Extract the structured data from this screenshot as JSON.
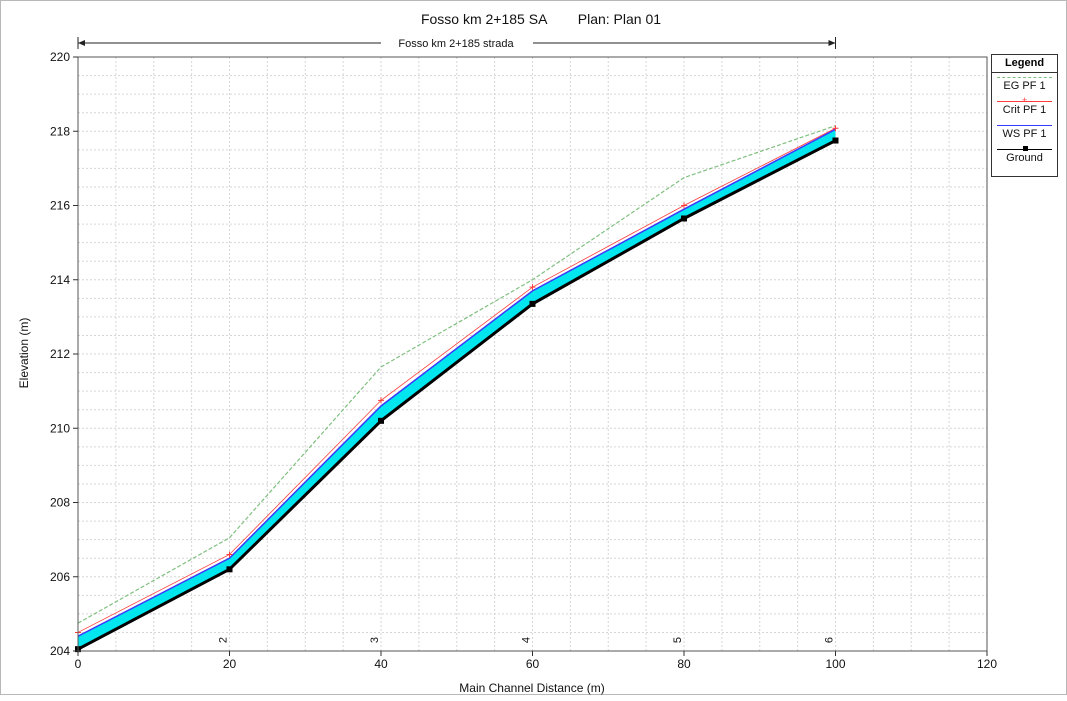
{
  "chart_data": {
    "type": "line",
    "title": "Fosso km 2+185 SA        Plan: Plan 01",
    "reach_label": "Fosso km 2+185 strada",
    "xlabel": "Main Channel Distance (m)",
    "ylabel": "Elevation (m)",
    "xlim": [
      0,
      120
    ],
    "ylim": [
      204,
      220
    ],
    "x_ticks": [
      0,
      20,
      40,
      60,
      80,
      100,
      120
    ],
    "y_ticks": [
      204,
      206,
      208,
      210,
      212,
      214,
      216,
      218,
      220
    ],
    "grid": true,
    "legend_position": "right",
    "reach_extent": [
      0,
      100
    ],
    "stations": [
      {
        "x": 20,
        "label": "2"
      },
      {
        "x": 40,
        "label": "3"
      },
      {
        "x": 60,
        "label": "4"
      },
      {
        "x": 80,
        "label": "5"
      },
      {
        "x": 100,
        "label": "6"
      }
    ],
    "x": [
      0,
      20,
      40,
      60,
      80,
      100
    ],
    "series": [
      {
        "name": "EG  PF 1",
        "key": "eg",
        "color": "#7fbf7f",
        "values": [
          204.75,
          207.05,
          211.65,
          214.0,
          216.75,
          218.15
        ]
      },
      {
        "name": "Crit  PF 1",
        "key": "crit",
        "color": "#ff3b3b",
        "values": [
          204.5,
          206.6,
          210.75,
          213.8,
          216.0,
          218.08
        ]
      },
      {
        "name": "WS  PF 1",
        "key": "ws",
        "color": "#3a3aff",
        "values": [
          204.4,
          206.5,
          210.6,
          213.7,
          215.9,
          218.05
        ]
      },
      {
        "name": "Ground",
        "key": "ground",
        "color": "#000000",
        "values": [
          204.05,
          206.2,
          210.2,
          213.35,
          215.65,
          217.75
        ]
      }
    ],
    "water_fill_color": "#00e5ee"
  },
  "legend": {
    "title": "Legend",
    "items": [
      {
        "label": "EG  PF 1",
        "color": "#7fbf7f"
      },
      {
        "label": "Crit  PF 1",
        "color": "#ff3b3b"
      },
      {
        "label": "WS  PF 1",
        "color": "#3a3aff"
      },
      {
        "label": "Ground",
        "color": "#000000"
      }
    ]
  }
}
